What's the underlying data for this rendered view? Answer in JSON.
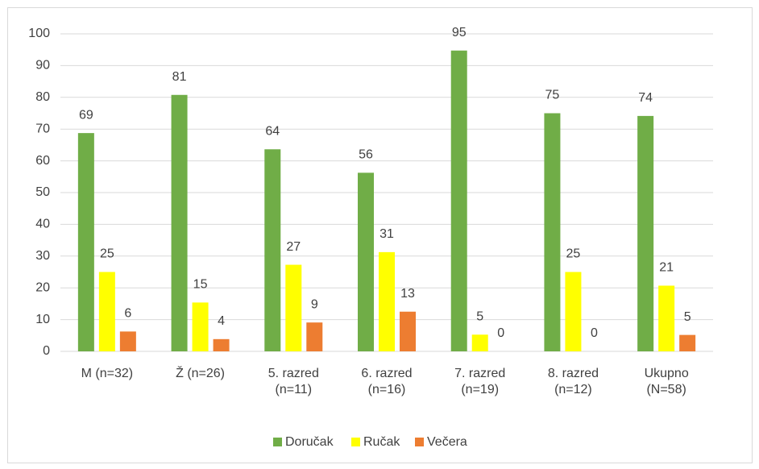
{
  "chart_data": {
    "type": "bar",
    "categories": [
      "M (n=32)",
      "Ž (n=26)",
      "5. razred (n=11)",
      "6. razred (n=16)",
      "7. razred (n=19)",
      "8. razred (n=12)",
      "Ukupno (N=58)"
    ],
    "series": [
      {
        "name": "Doručak",
        "color": "#70ad47",
        "values": [
          68.75,
          80.77,
          63.64,
          56.25,
          94.74,
          75,
          74.14
        ],
        "value_labels": [
          "69",
          "81",
          "64",
          "56",
          "95",
          "75",
          "74"
        ]
      },
      {
        "name": "Ručak",
        "color": "#ffff00",
        "values": [
          25,
          15.38,
          27.27,
          31.25,
          5.26,
          25,
          20.69
        ],
        "value_labels": [
          "25",
          "15",
          "27",
          "31",
          "5",
          "25",
          "21"
        ]
      },
      {
        "name": "Večera",
        "color": "#ed7d31",
        "values": [
          6.25,
          3.85,
          9.09,
          12.5,
          0,
          0,
          5.17
        ],
        "value_labels": [
          "6",
          "4",
          "9",
          "13",
          "0",
          "0",
          "5"
        ]
      }
    ],
    "ylim": [
      0,
      100
    ],
    "yticks": [
      0,
      10,
      20,
      30,
      40,
      50,
      60,
      70,
      80,
      90,
      100
    ],
    "grid": true,
    "legend": "bottom"
  }
}
